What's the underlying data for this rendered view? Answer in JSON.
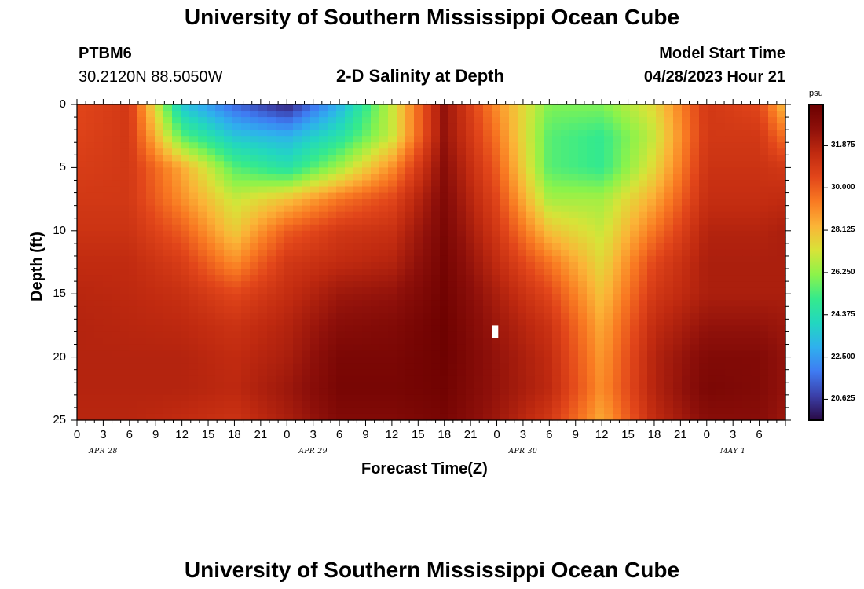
{
  "header": {
    "title": "University of Southern Mississippi Ocean Cube",
    "station_id": "PTBM6",
    "station_coords": "30.2120N  88.5050W",
    "plot_subtitle": "2-D Salinity at Depth",
    "model_start_label": "Model Start Time",
    "model_start_value": "04/28/2023 Hour 21"
  },
  "footer": {
    "title": "University of Southern Mississippi Ocean Cube"
  },
  "chart_data": {
    "type": "heatmap",
    "title": "2-D Salinity at Depth",
    "xlabel": "Forecast Time(Z)",
    "ylabel": "Depth (ft)",
    "x_range_hours": [
      0,
      81
    ],
    "x_ticks": [
      "0",
      "3",
      "6",
      "9",
      "12",
      "15",
      "18",
      "21",
      "0",
      "3",
      "6",
      "9",
      "12",
      "15",
      "18",
      "21",
      "0",
      "3",
      "6",
      "9",
      "12",
      "15",
      "18",
      "21",
      "0",
      "3",
      "6"
    ],
    "date_labels": [
      "APR 28",
      "APR 29",
      "APR 30",
      "MAY 1"
    ],
    "y_range_ft": [
      0,
      25
    ],
    "y_ticks": [
      "0",
      "5",
      "10",
      "15",
      "20",
      "25"
    ],
    "colorbar": {
      "unit": "psu",
      "min": 19.7,
      "max": 33.7,
      "tick_labels": [
        "31.875",
        "30.000",
        "28.125",
        "26.250",
        "24.375",
        "22.500",
        "20.625"
      ],
      "colors": [
        "#2a0a45",
        "#3b3fa8",
        "#3f7bf2",
        "#2fb0ee",
        "#22d7c0",
        "#35ea8c",
        "#8cf34a",
        "#d8e338",
        "#fbb437",
        "#f97a22",
        "#e2461a",
        "#c02a10",
        "#8e100a",
        "#6b0000"
      ]
    },
    "salinity_grid_psu": {
      "x_hours": [
        0,
        6,
        12,
        18,
        24,
        30,
        36,
        42,
        48,
        54,
        60,
        66,
        72,
        78,
        81
      ],
      "depth_ft": [
        0,
        2.5,
        5,
        7.5,
        10,
        12.5,
        15,
        17.5,
        20,
        22.5,
        25
      ],
      "values": [
        [
          30.5,
          31.0,
          23.5,
          21.5,
          20.2,
          23.0,
          27.0,
          32.5,
          29.0,
          26.0,
          26.0,
          27.5,
          31.0,
          30.5,
          28.0
        ],
        [
          30.6,
          31.0,
          25.5,
          23.5,
          23.0,
          24.5,
          27.0,
          32.5,
          29.5,
          25.5,
          25.0,
          27.0,
          31.0,
          31.0,
          29.5
        ],
        [
          30.8,
          31.0,
          28.5,
          25.5,
          24.5,
          26.5,
          29.0,
          32.8,
          30.0,
          25.5,
          25.0,
          27.5,
          31.2,
          31.2,
          31.0
        ],
        [
          31.0,
          31.0,
          29.0,
          27.0,
          28.0,
          29.5,
          30.5,
          33.0,
          30.5,
          26.5,
          26.5,
          28.5,
          31.4,
          31.4,
          31.5
        ],
        [
          31.2,
          31.2,
          30.0,
          27.8,
          30.0,
          31.0,
          31.3,
          33.2,
          31.0,
          28.0,
          27.0,
          29.5,
          31.8,
          31.8,
          32.0
        ],
        [
          31.5,
          31.5,
          30.8,
          29.0,
          31.0,
          31.5,
          31.8,
          33.4,
          31.5,
          29.5,
          27.5,
          30.5,
          32.0,
          32.0,
          32.0
        ],
        [
          31.7,
          31.6,
          31.3,
          30.5,
          31.4,
          32.3,
          32.5,
          33.5,
          32.0,
          30.5,
          28.0,
          31.0,
          32.0,
          32.0,
          32.0
        ],
        [
          31.8,
          31.7,
          31.6,
          31.2,
          31.8,
          32.8,
          33.0,
          33.6,
          32.3,
          31.2,
          28.5,
          31.5,
          32.5,
          32.5,
          32.3
        ],
        [
          31.8,
          31.8,
          31.8,
          31.5,
          32.0,
          33.2,
          33.2,
          33.6,
          32.5,
          31.5,
          28.8,
          31.8,
          33.0,
          33.0,
          32.5
        ],
        [
          31.8,
          31.8,
          31.8,
          31.6,
          32.3,
          33.3,
          33.3,
          33.5,
          32.5,
          31.6,
          29.0,
          31.8,
          33.2,
          33.0,
          32.5
        ],
        [
          31.7,
          31.7,
          31.5,
          31.2,
          32.0,
          33.0,
          33.0,
          33.3,
          32.3,
          31.0,
          28.5,
          31.5,
          32.8,
          32.8,
          32.3
        ]
      ]
    },
    "marker": {
      "x_hours": 47.8,
      "depth_ft": 18,
      "color": "#ffffff"
    }
  }
}
